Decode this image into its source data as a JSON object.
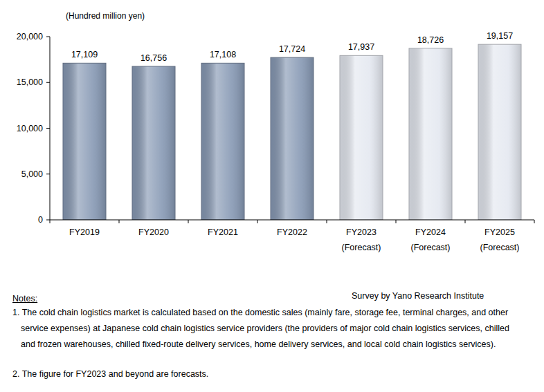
{
  "chart_data": {
    "type": "bar",
    "y_label": "(Hundred million  yen)",
    "categories": [
      "FY2019",
      "FY2020",
      "FY2021",
      "FY2022",
      "FY2023 (Forecast)",
      "FY2024 (Forecast)",
      "FY2025 (Forecast)"
    ],
    "values": [
      17109,
      16756,
      17108,
      17724,
      17937,
      18726,
      19157
    ],
    "value_labels": [
      "17,109",
      "16,756",
      "17,108",
      "17,724",
      "17,937",
      "18,726",
      "19,157"
    ],
    "colors": [
      "#8799b4",
      "#8799b4",
      "#8799b4",
      "#8799b4",
      "#e4e8f0",
      "#e4e8f0",
      "#e4e8f0"
    ],
    "ylim": [
      0,
      20000
    ],
    "yticks": [
      0,
      {
        "value": 5000,
        "label": "5,000"
      },
      {
        "value": 10000,
        "label": "10,000"
      },
      {
        "value": 15000,
        "label": "15,000"
      },
      {
        "value": 20000,
        "label": "20,000"
      }
    ],
    "grid": false,
    "data_labels": true,
    "source": "Survey by Yano Research Institute",
    "annotations": [
      "Notes:",
      "1. The cold chain logistics market is calculated based on the domestic sales (mainly fare, storage fee, terminal charges, and other service expenses) at Japanese cold chain logistics service providers (the providers of major cold chain logistics services, chilled and frozen warehouses, chilled fixed-route delivery services, home delivery services, and local cold chain logistics services).",
      "2. The figure for FY2023 and beyond are forecasts."
    ]
  }
}
